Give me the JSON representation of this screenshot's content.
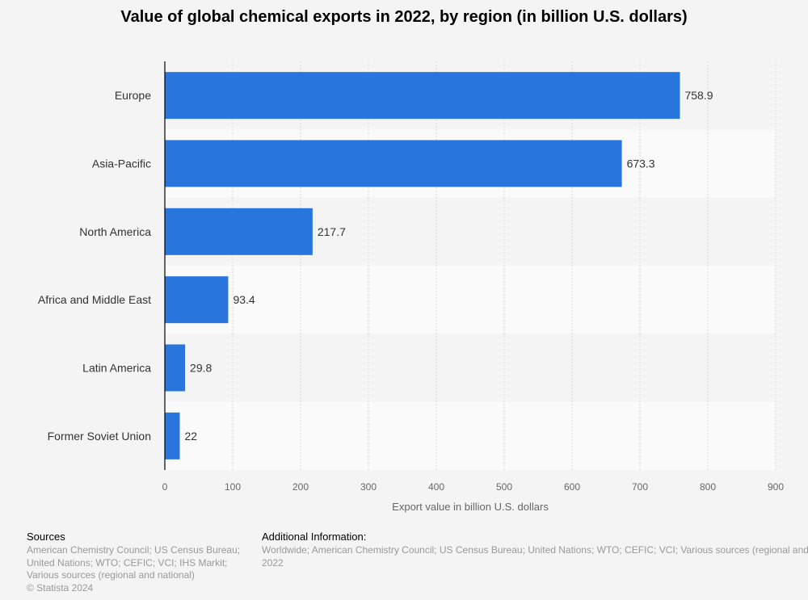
{
  "chart_data": {
    "type": "bar",
    "orientation": "horizontal",
    "title": "Value of global chemical exports in 2022, by region (in billion U.S. dollars)",
    "categories": [
      "Europe",
      "Asia-Pacific",
      "North America",
      "Africa and Middle East",
      "Latin America",
      "Former Soviet Union"
    ],
    "values": [
      758.9,
      673.3,
      217.7,
      93.4,
      29.8,
      22
    ],
    "value_labels": [
      "758.9",
      "673.3",
      "217.7",
      "93.4",
      "29.8",
      "22"
    ],
    "xlabel": "Export value in billion U.S. dollars",
    "ylabel": "",
    "xlim": [
      0,
      900
    ],
    "xticks": [
      0,
      100,
      200,
      300,
      400,
      500,
      600,
      700,
      800,
      900
    ],
    "grid": true,
    "bar_color": "#2876dd"
  },
  "footer": {
    "sources_heading": "Sources",
    "sources_lines": [
      "American Chemistry Council; US Census Bureau;",
      "United Nations; WTO; CEFIC; VCI; IHS Markit;",
      "Various sources (regional and national)",
      "© Statista 2024"
    ],
    "additional_heading": "Additional Information:",
    "additional_lines": [
      "Worldwide; American Chemistry Council; US Census Bureau; United Nations; WTO; CEFIC; VCI; Various sources (regional and national);",
      "2022"
    ]
  }
}
